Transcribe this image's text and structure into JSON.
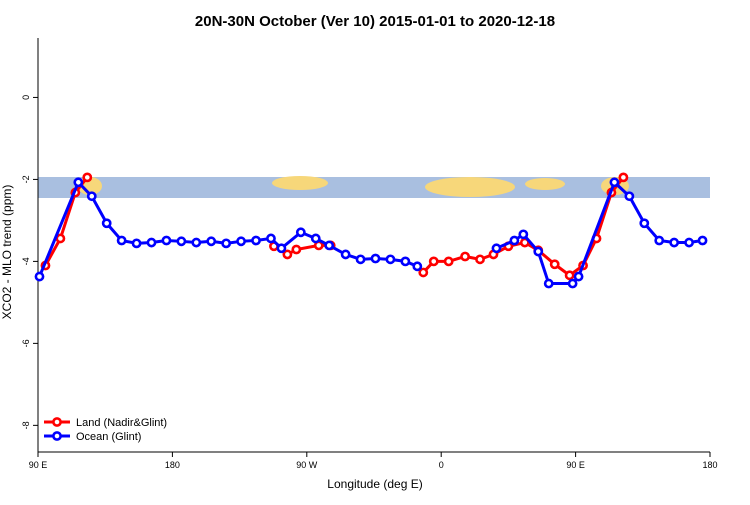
{
  "chart_data": {
    "type": "line",
    "title": "20N-30N October (Ver 10)   2015-01-01 to 2020-12-18",
    "x_label": "Longitude (deg E)",
    "y_label": "XCO2 - MLO trend (ppm)",
    "xlim": [
      90,
      540
    ],
    "xticks": [
      {
        "value": 90,
        "label": "90 E"
      },
      {
        "value": 180,
        "label": "180"
      },
      {
        "value": 270,
        "label": "90 W"
      },
      {
        "value": 360,
        "label": "0"
      },
      {
        "value": 450,
        "label": "90 E"
      },
      {
        "value": 540,
        "label": "180"
      }
    ],
    "ylim": [
      -8.65,
      1.45
    ],
    "yticks": [
      -8,
      -6,
      -4,
      -2,
      0
    ],
    "legend": "bottom-left",
    "series": [
      {
        "name": "Land (Nadir&Glint)",
        "color": "#ff0000",
        "x": [
          95,
          105,
          115,
          123,
          200,
          248,
          257,
          263,
          278,
          286,
          300,
          348,
          355,
          365,
          376,
          386,
          395,
          405,
          416,
          425,
          436,
          446,
          455,
          464,
          474,
          482
        ],
        "values": [
          -4.1,
          -3.44,
          -2.32,
          -1.95,
          null,
          -3.63,
          -3.83,
          -3.71,
          -3.61,
          -3.61,
          null,
          -4.27,
          -4.0,
          -4.0,
          -3.88,
          -3.95,
          -3.83,
          -3.63,
          -3.54,
          -3.73,
          -4.07,
          -4.34,
          -4.1,
          -3.44,
          -2.32,
          -1.95
        ]
      },
      {
        "name": "Ocean (Glint)",
        "color": "#0000ff",
        "x": [
          91,
          117,
          126,
          136,
          146,
          156,
          166,
          176,
          186,
          196,
          206,
          216,
          226,
          236,
          246,
          253,
          266,
          276,
          285,
          296,
          306,
          316,
          326,
          336,
          344,
          380,
          397,
          409,
          415,
          425,
          432,
          448,
          452,
          476,
          486,
          496,
          506,
          516,
          526,
          535
        ],
        "values": [
          -4.37,
          -2.07,
          -2.41,
          -3.07,
          -3.49,
          -3.56,
          -3.54,
          -3.49,
          -3.51,
          -3.54,
          -3.51,
          -3.56,
          -3.51,
          -3.49,
          -3.44,
          -3.68,
          -3.29,
          -3.44,
          -3.61,
          -3.83,
          -3.95,
          -3.93,
          -3.95,
          -4.0,
          -4.12,
          null,
          -3.68,
          -3.49,
          -3.34,
          -3.76,
          -4.54,
          -4.54,
          -4.37,
          -2.07,
          -2.41,
          -3.07,
          -3.49,
          -3.54,
          -3.54,
          -3.49
        ]
      }
    ]
  }
}
